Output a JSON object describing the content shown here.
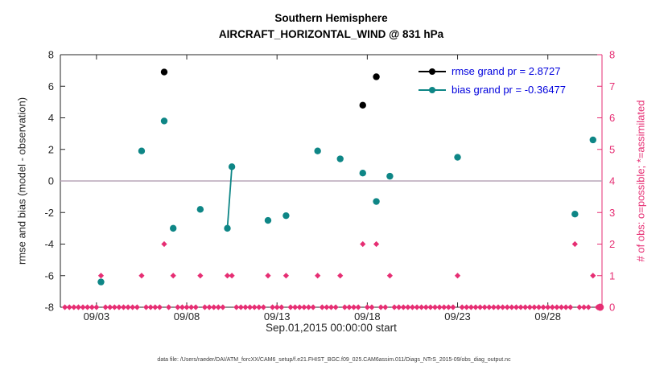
{
  "title": {
    "line1": "Southern Hemisphere",
    "line2": "AIRCRAFT_HORIZONTAL_WIND @ 831 hPa"
  },
  "caption": "data file: /Users/raeder/DAI/ATM_forcXX/CAM6_setup/f.e21.FHIST_BGC.f09_025.CAM6assim.011/Diags_NTrS_2015-09/obs_diag_output.nc",
  "chart_data": {
    "type": "line",
    "title": "Southern Hemisphere — AIRCRAFT_HORIZONTAL_WIND @ 831 hPa",
    "xlabel": "Sep.01,2015 00:00:00 start",
    "ylabel_left": "rmse and bias (model - observation)",
    "ylabel_right": "# of obs: o=possible; *=assimilated",
    "x_range": [
      1,
      31
    ],
    "y_left_range": [
      -8,
      8
    ],
    "y_right_range": [
      0,
      8
    ],
    "x_ticks": [
      {
        "day": 3,
        "label": "09/03"
      },
      {
        "day": 8,
        "label": "09/08"
      },
      {
        "day": 13,
        "label": "09/13"
      },
      {
        "day": 18,
        "label": "09/18"
      },
      {
        "day": 23,
        "label": "09/23"
      },
      {
        "day": 28,
        "label": "09/28"
      }
    ],
    "y_ticks_left": [
      -8,
      -6,
      -4,
      -2,
      0,
      2,
      4,
      6,
      8
    ],
    "y_ticks_right": [
      0,
      1,
      2,
      3,
      4,
      5,
      6,
      7,
      8
    ],
    "zero_reference_line": 0,
    "connect_gap_days": 0.3,
    "legend": [
      {
        "series": "rmse",
        "label": "rmse grand pr = 2.8727"
      },
      {
        "series": "bias",
        "label": "bias grand pr = -0.36477"
      }
    ],
    "series": {
      "rmse": {
        "axis": "left",
        "points": [
          [
            6.75,
            6.9
          ],
          [
            17.75,
            4.8
          ],
          [
            18.5,
            6.6
          ]
        ]
      },
      "bias": {
        "axis": "left",
        "points": [
          [
            3.25,
            -6.4
          ],
          [
            5.5,
            1.9
          ],
          [
            6.75,
            3.8
          ],
          [
            7.25,
            -3.0
          ],
          [
            8.75,
            -1.8
          ],
          [
            10.25,
            -3.0
          ],
          [
            10.5,
            0.9
          ],
          [
            12.5,
            -2.5
          ],
          [
            13.5,
            -2.2
          ],
          [
            15.25,
            1.9
          ],
          [
            16.5,
            1.4
          ],
          [
            17.75,
            0.5
          ],
          [
            18.5,
            -1.3
          ],
          [
            19.25,
            0.3
          ],
          [
            23.0,
            1.5
          ],
          [
            29.5,
            -2.1
          ],
          [
            30.5,
            2.6
          ]
        ]
      },
      "obs_counts": {
        "axis": "right",
        "nonzero_points": [
          [
            3.25,
            1
          ],
          [
            5.5,
            1
          ],
          [
            6.75,
            2
          ],
          [
            7.25,
            1
          ],
          [
            8.75,
            1
          ],
          [
            10.25,
            1
          ],
          [
            10.5,
            1
          ],
          [
            12.5,
            1
          ],
          [
            13.5,
            1
          ],
          [
            15.25,
            1
          ],
          [
            16.5,
            1
          ],
          [
            17.75,
            2
          ],
          [
            18.5,
            2
          ],
          [
            19.25,
            1
          ],
          [
            23.0,
            1
          ],
          [
            29.5,
            2
          ],
          [
            30.5,
            1
          ]
        ],
        "zero_run": {
          "start_day": 1.25,
          "end_day": 30.75,
          "step_days": 0.25
        },
        "end_dot": [
          30.9,
          0
        ]
      }
    },
    "colors": {
      "rmse": "#000000",
      "bias": "#0e8686",
      "obs": "#e62e73",
      "legend_text": "#0000dd",
      "zero_line": "#b9a6b9",
      "axis": "#262626",
      "background": "#ffffff"
    }
  }
}
